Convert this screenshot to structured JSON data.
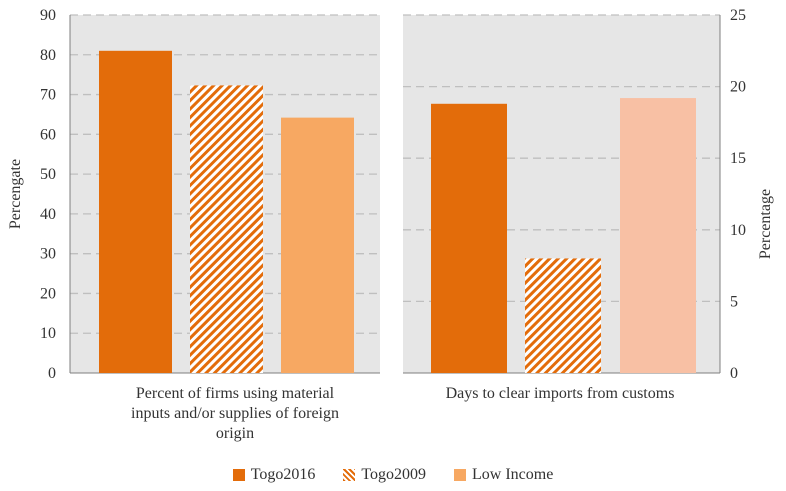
{
  "chart_data": [
    {
      "type": "bar",
      "categories": [
        "Percent of firms using material inputs and/or supplies of foreign origin"
      ],
      "series": [
        {
          "name": "Togo2016",
          "values": [
            81
          ],
          "color": "#e36c0a",
          "pattern": "solid"
        },
        {
          "name": "Togo2009",
          "values": [
            72.3
          ],
          "color": "#e36c0a",
          "pattern": "hatch"
        },
        {
          "name": "Low Income",
          "values": [
            64.2
          ],
          "color": "#f7a862",
          "pattern": "solid"
        }
      ],
      "ylabel": "Percengate",
      "ylim": [
        0,
        90
      ],
      "yticks": [
        "0",
        "10",
        "20",
        "30",
        "40",
        "50",
        "60",
        "70",
        "80",
        "90"
      ],
      "xlabel_lines": [
        "Percent of firms using material",
        "inputs and/or supplies of foreign",
        "origin"
      ],
      "grid": true
    },
    {
      "type": "bar",
      "categories": [
        "Days to clear imports from customs"
      ],
      "series": [
        {
          "name": "Togo2016",
          "values": [
            18.8
          ],
          "color": "#e36c0a",
          "pattern": "solid"
        },
        {
          "name": "Togo2009",
          "values": [
            8.0
          ],
          "color": "#e36c0a",
          "pattern": "hatch"
        },
        {
          "name": "Low Income",
          "values": [
            19.2
          ],
          "color": "#f8c0a4",
          "pattern": "solid"
        }
      ],
      "ylabel": "Percentage",
      "ylim": [
        0,
        25
      ],
      "yticks": [
        "0",
        "5",
        "10",
        "15",
        "20",
        "25"
      ],
      "xlabel_lines": [
        "Days to clear imports from customs"
      ],
      "grid": true
    }
  ],
  "legend": [
    {
      "label": "Togo2016",
      "color": "#e36c0a",
      "pattern": "solid"
    },
    {
      "label": "Togo2009",
      "color": "#e36c0a",
      "pattern": "hatch"
    },
    {
      "label": "Low Income",
      "color": "#f7a862",
      "pattern": "solid"
    }
  ],
  "colors": {
    "panel_bg": "#e6e6e6",
    "grid": "#bfbfbf",
    "axis": "#7f7f7f"
  }
}
